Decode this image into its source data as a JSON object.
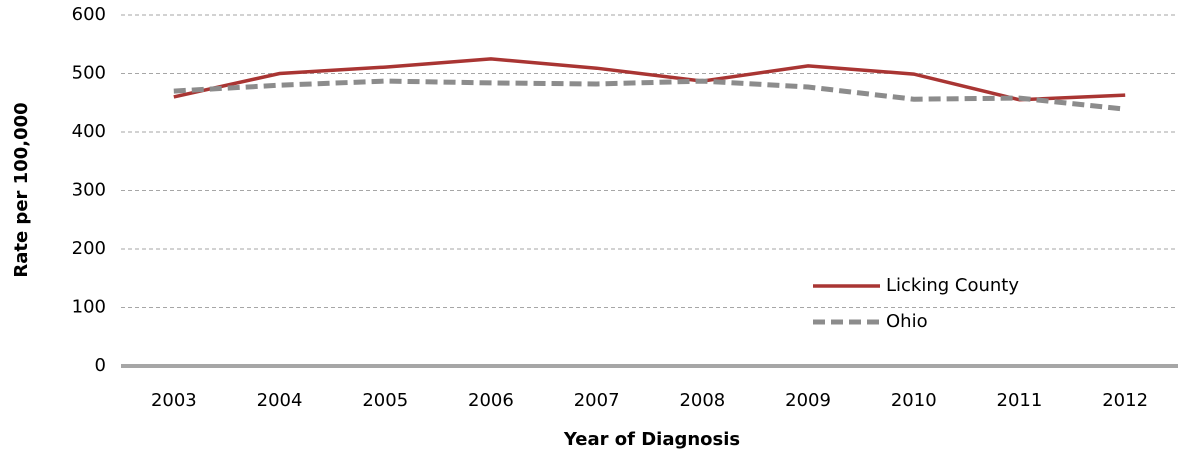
{
  "chart_data": {
    "type": "line",
    "categories": [
      "2003",
      "2004",
      "2005",
      "2006",
      "2007",
      "2008",
      "2009",
      "2010",
      "2011",
      "2012"
    ],
    "series": [
      {
        "name": "Licking County",
        "color": "#a93533",
        "dash": false,
        "values": [
          460,
          500,
          511,
          525,
          509,
          487,
          513,
          499,
          455,
          463
        ]
      },
      {
        "name": "Ohio",
        "color": "#8c8c8c",
        "dash": true,
        "values": [
          470,
          480,
          487,
          484,
          482,
          487,
          477,
          456,
          458,
          439
        ]
      }
    ],
    "x_label": "Year of Diagnosis",
    "y_label": "Rate per 100,000",
    "ylim": [
      0,
      600
    ],
    "yticks": [
      0,
      100,
      200,
      300,
      400,
      500,
      600
    ],
    "grid": true,
    "legend": "lower right"
  }
}
